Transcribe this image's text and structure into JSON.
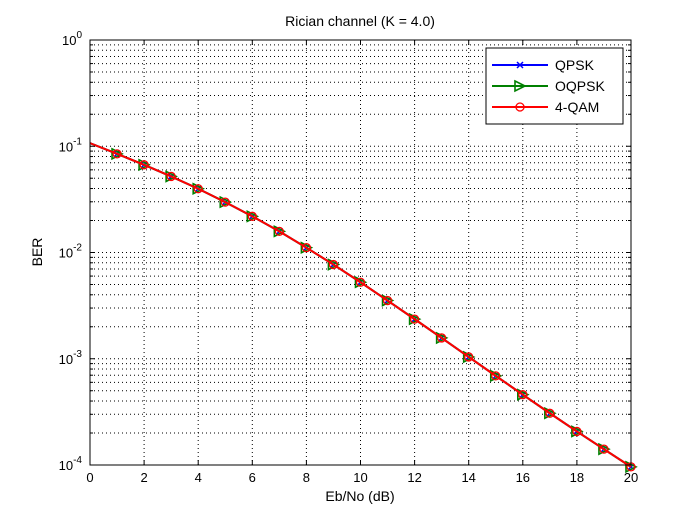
{
  "chart_data": {
    "type": "line",
    "title": "Rician channel (K = 4.0)",
    "xlabel": "Eb/No (dB)",
    "ylabel": "BER",
    "xscale": "linear",
    "yscale": "log",
    "xlim": [
      0,
      20
    ],
    "ylim": [
      0.0001,
      1
    ],
    "xticks": [
      0,
      2,
      4,
      6,
      8,
      10,
      12,
      14,
      16,
      18,
      20
    ],
    "xtick_labels": [
      "0",
      "2",
      "4",
      "6",
      "8",
      "10",
      "12",
      "14",
      "16",
      "18",
      "20"
    ],
    "yticks": [
      {
        "value": 1,
        "base": "10",
        "exp": "0"
      },
      {
        "value": 0.1,
        "base": "10",
        "exp": "-1"
      },
      {
        "value": 0.01,
        "base": "10",
        "exp": "-2"
      },
      {
        "value": 0.001,
        "base": "10",
        "exp": "-3"
      },
      {
        "value": 0.0001,
        "base": "10",
        "exp": "-4"
      }
    ],
    "grid": true,
    "legend_position": "top-right",
    "x": [
      0,
      1,
      2,
      3,
      4,
      5,
      6,
      7,
      8,
      9,
      10,
      11,
      12,
      13,
      14,
      15,
      16,
      17,
      18,
      19,
      20
    ],
    "series": [
      {
        "name": "QPSK",
        "color": "#0000ff",
        "marker": "x",
        "values": [
          0.107,
          0.0848,
          0.0669,
          0.052,
          0.0398,
          0.0298,
          0.0219,
          0.0158,
          0.0111,
          0.0077,
          0.00525,
          0.00353,
          0.00236,
          0.00157,
          0.00104,
          0.00069,
          0.000459,
          0.000307,
          0.000207,
          0.000141,
          9.6e-05
        ]
      },
      {
        "name": "OQPSK",
        "color": "#008000",
        "marker": "triangle-right",
        "values": [
          0.107,
          0.0848,
          0.0669,
          0.052,
          0.0398,
          0.0298,
          0.0219,
          0.0158,
          0.0111,
          0.0077,
          0.00525,
          0.00353,
          0.00236,
          0.00157,
          0.00104,
          0.00069,
          0.000459,
          0.000307,
          0.000207,
          0.000141,
          9.6e-05
        ]
      },
      {
        "name": "4-QAM",
        "color": "#ff0000",
        "marker": "circle",
        "values": [
          0.107,
          0.0848,
          0.0669,
          0.052,
          0.0398,
          0.0298,
          0.0219,
          0.0158,
          0.0111,
          0.0077,
          0.00525,
          0.00353,
          0.00236,
          0.00157,
          0.00104,
          0.00069,
          0.000459,
          0.000307,
          0.000207,
          0.000141,
          9.6e-05
        ]
      }
    ]
  }
}
